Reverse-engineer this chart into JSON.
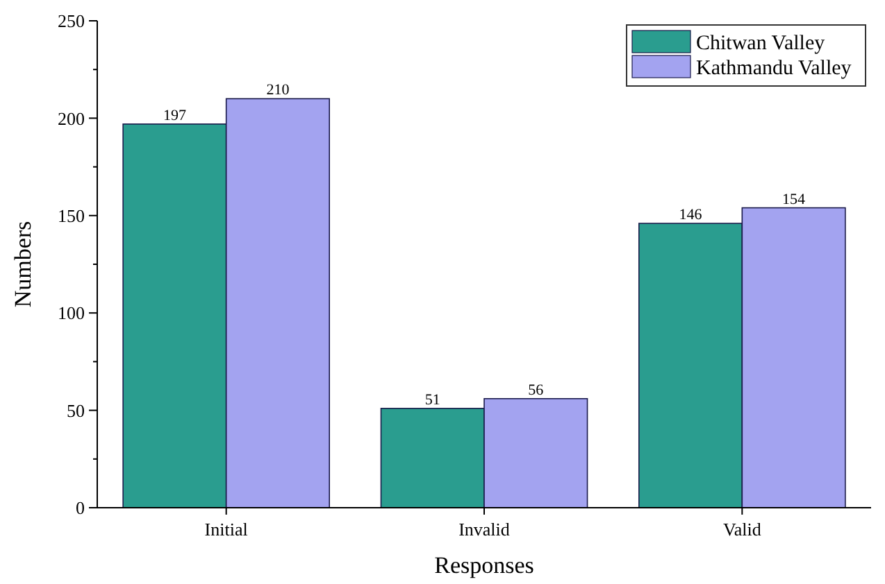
{
  "chart_data": {
    "type": "bar",
    "xlabel": "Responses",
    "ylabel": "Numbers",
    "categories": [
      "Initial",
      "Invalid",
      "Valid"
    ],
    "series": [
      {
        "name": "Chitwan Valley",
        "color": "#2a9d8f",
        "values": [
          197,
          51,
          146
        ]
      },
      {
        "name": "Kathmandu Valley",
        "color": "#a3a3f0",
        "values": [
          210,
          56,
          154
        ]
      }
    ],
    "ylim": [
      0,
      250
    ],
    "yticks": [
      0,
      {
        "value": 25,
        "label": null
      },
      50,
      {
        "value": 75,
        "label": null
      },
      100,
      {
        "value": 125,
        "label": null
      },
      150,
      {
        "value": 175,
        "label": null
      },
      200,
      {
        "value": 225,
        "label": null
      },
      250
    ],
    "data_labels": true,
    "grid": false,
    "legend": "top right"
  }
}
